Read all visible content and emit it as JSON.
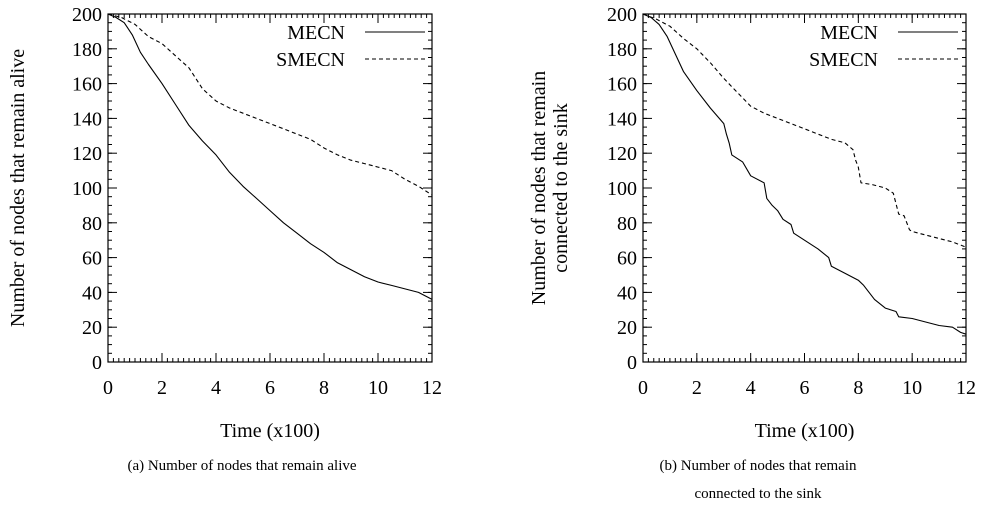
{
  "chart_data": [
    {
      "type": "line",
      "caption": "(a) Number of nodes that remain alive",
      "xlabel": "Time (x100)",
      "ylabel": [
        "Number of nodes that remain alive"
      ],
      "xlim": [
        0,
        12
      ],
      "ylim": [
        0,
        200
      ],
      "xticks": [
        0,
        2,
        4,
        6,
        8,
        10,
        12
      ],
      "yticks": [
        0,
        20,
        40,
        60,
        80,
        100,
        120,
        140,
        160,
        180,
        200
      ],
      "legend": "top-right",
      "grid": false,
      "series": [
        {
          "name": "MECN",
          "style": "solid",
          "x": [
            0,
            0.3,
            0.6,
            0.9,
            1.2,
            1.5,
            2.0,
            2.5,
            3.0,
            3.5,
            4.0,
            4.5,
            5.0,
            5.5,
            6.0,
            6.5,
            7.0,
            7.5,
            8.0,
            8.5,
            9.0,
            9.5,
            10.0,
            10.5,
            11.0,
            11.5,
            12.0
          ],
          "y": [
            200,
            198,
            195,
            188,
            178,
            171,
            160,
            148,
            136,
            127,
            119,
            109,
            101,
            94,
            87,
            80,
            74,
            68,
            63,
            57,
            53,
            49,
            46,
            44,
            42,
            40,
            36
          ]
        },
        {
          "name": "SMECN",
          "style": "dashed",
          "x": [
            0,
            0.5,
            1.0,
            1.5,
            2.0,
            2.5,
            3.0,
            3.5,
            4.0,
            4.5,
            5.0,
            5.5,
            6.0,
            6.5,
            7.0,
            7.5,
            8.0,
            8.5,
            9.0,
            9.5,
            10.0,
            10.5,
            11.0,
            11.5,
            12.0
          ],
          "y": [
            200,
            198,
            194,
            187,
            183,
            176,
            169,
            157,
            150,
            146,
            143,
            140,
            137,
            134,
            131,
            128,
            123,
            119,
            116,
            114,
            112,
            110,
            105,
            101,
            96
          ]
        }
      ]
    },
    {
      "type": "line",
      "caption": [
        "(b) Number of nodes that remain",
        "connected to the sink"
      ],
      "xlabel": "Time (x100)",
      "ylabel": [
        "Number of nodes that remain",
        "connected to the sink"
      ],
      "xlim": [
        0,
        12
      ],
      "ylim": [
        0,
        200
      ],
      "xticks": [
        0,
        2,
        4,
        6,
        8,
        10,
        12
      ],
      "yticks": [
        0,
        20,
        40,
        60,
        80,
        100,
        120,
        140,
        160,
        180,
        200
      ],
      "legend": "top-right",
      "grid": false,
      "series": [
        {
          "name": "MECN",
          "style": "solid",
          "x": [
            0,
            0.3,
            0.6,
            0.9,
            1.2,
            1.5,
            2.0,
            2.5,
            3.0,
            3.1,
            3.2,
            3.3,
            3.7,
            4.0,
            4.5,
            4.6,
            4.8,
            5.0,
            5.2,
            5.5,
            5.6,
            6.0,
            6.5,
            6.9,
            7.0,
            7.5,
            8.0,
            8.2,
            8.4,
            8.6,
            9.0,
            9.4,
            9.5,
            10.0,
            10.5,
            11.0,
            11.5,
            11.8,
            12.0
          ],
          "y": [
            200,
            198,
            194,
            187,
            177,
            167,
            156,
            146,
            137,
            131,
            126,
            119,
            115,
            107,
            103,
            94,
            90,
            87,
            82,
            79,
            74,
            70,
            65,
            60,
            55,
            51,
            47,
            44,
            40,
            36,
            31,
            29,
            26,
            25,
            23,
            21,
            20,
            17,
            16
          ]
        },
        {
          "name": "SMECN",
          "style": "dashed",
          "x": [
            0,
            0.5,
            1.0,
            1.5,
            2.0,
            2.5,
            3.0,
            3.5,
            4.0,
            4.5,
            5.0,
            5.5,
            6.0,
            6.5,
            7.0,
            7.5,
            7.8,
            7.9,
            8.0,
            8.1,
            8.5,
            9.0,
            9.3,
            9.5,
            9.7,
            9.9,
            10.0,
            10.5,
            11.0,
            11.5,
            12.0
          ],
          "y": [
            200,
            197,
            193,
            186,
            180,
            172,
            163,
            155,
            147,
            143,
            140,
            137,
            134,
            131,
            128,
            126,
            122,
            116,
            112,
            103,
            102,
            100,
            97,
            85,
            84,
            76,
            75,
            73,
            71,
            69,
            66
          ]
        }
      ]
    }
  ]
}
